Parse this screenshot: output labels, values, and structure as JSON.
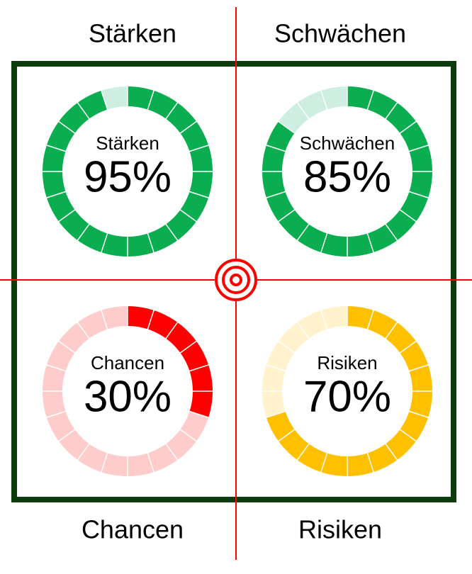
{
  "labels": [
    "Stärken",
    "Schwächen",
    "Chancen",
    "Risiken"
  ],
  "chart_data": [
    {
      "type": "gauge",
      "title": "Stärken",
      "values": [
        95
      ],
      "value_labels": [
        "95%"
      ],
      "color": "#0aad4f",
      "track_color": "#cdeee0",
      "label_color": "#0a8a0a"
    },
    {
      "type": "gauge",
      "title": "Schwächen",
      "values": [
        85
      ],
      "value_labels": [
        "85%"
      ],
      "color": "#0aad4f",
      "track_color": "#cdeee0",
      "label_color": "#0a8a0a"
    },
    {
      "type": "gauge",
      "title": "Chancen",
      "values": [
        30
      ],
      "value_labels": [
        "30%"
      ],
      "color": "#ff0000",
      "track_color": "#ffcccc",
      "label_color": "#ff0000"
    },
    {
      "type": "gauge",
      "title": "Risiken",
      "values": [
        70
      ],
      "value_labels": [
        "70%"
      ],
      "color": "#ffc000",
      "track_color": "#fff2cc",
      "label_color": "#e0ab10"
    }
  ]
}
